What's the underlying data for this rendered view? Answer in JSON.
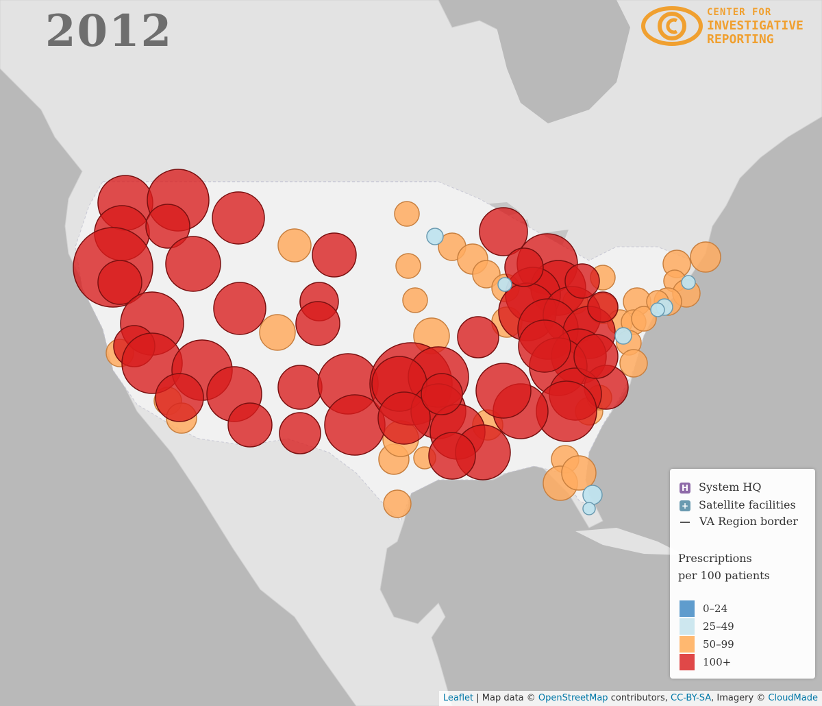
{
  "year": "2012",
  "logo": {
    "line1": "CENTER FOR",
    "line2": "INVESTIGATIVE",
    "line3": "REPORTING",
    "color": "#f0a030",
    "icon": "eye-c-icon"
  },
  "legend": {
    "symbols": [
      {
        "glyph": "H",
        "label": "System HQ",
        "color": "#8e6aa8",
        "icon": "hospital-h-icon"
      },
      {
        "glyph": "+",
        "label": "Satellite facilities",
        "color": "#6a9ab0",
        "icon": "plus-icon"
      },
      {
        "glyph": "",
        "label": "VA Region border",
        "icon": "line-icon"
      }
    ],
    "title_line1": "Prescriptions",
    "title_line2": "per 100 patients",
    "bins": [
      {
        "label": "0–24",
        "color": "#5f9ccd"
      },
      {
        "label": "25–49",
        "color": "#cde7ef"
      },
      {
        "label": "50–99",
        "color": "#ffb870"
      },
      {
        "label": "100+",
        "color": "#e04848"
      }
    ]
  },
  "attribution": {
    "leaflet": "Leaflet",
    "sep": "|",
    "map_data": "Map data ©",
    "osm": "OpenStreetMap",
    "contributors": "contributors,",
    "license": "CC-BY-SA",
    "imagery": ", Imagery ©",
    "provider": "CloudMade"
  },
  "colors": {
    "water": "#b9b9b9",
    "land": "#e6e6e6",
    "us": "#efefef",
    "high": "#d81c1c",
    "mid": "#ffac60",
    "low": "#bfe3ee"
  }
}
